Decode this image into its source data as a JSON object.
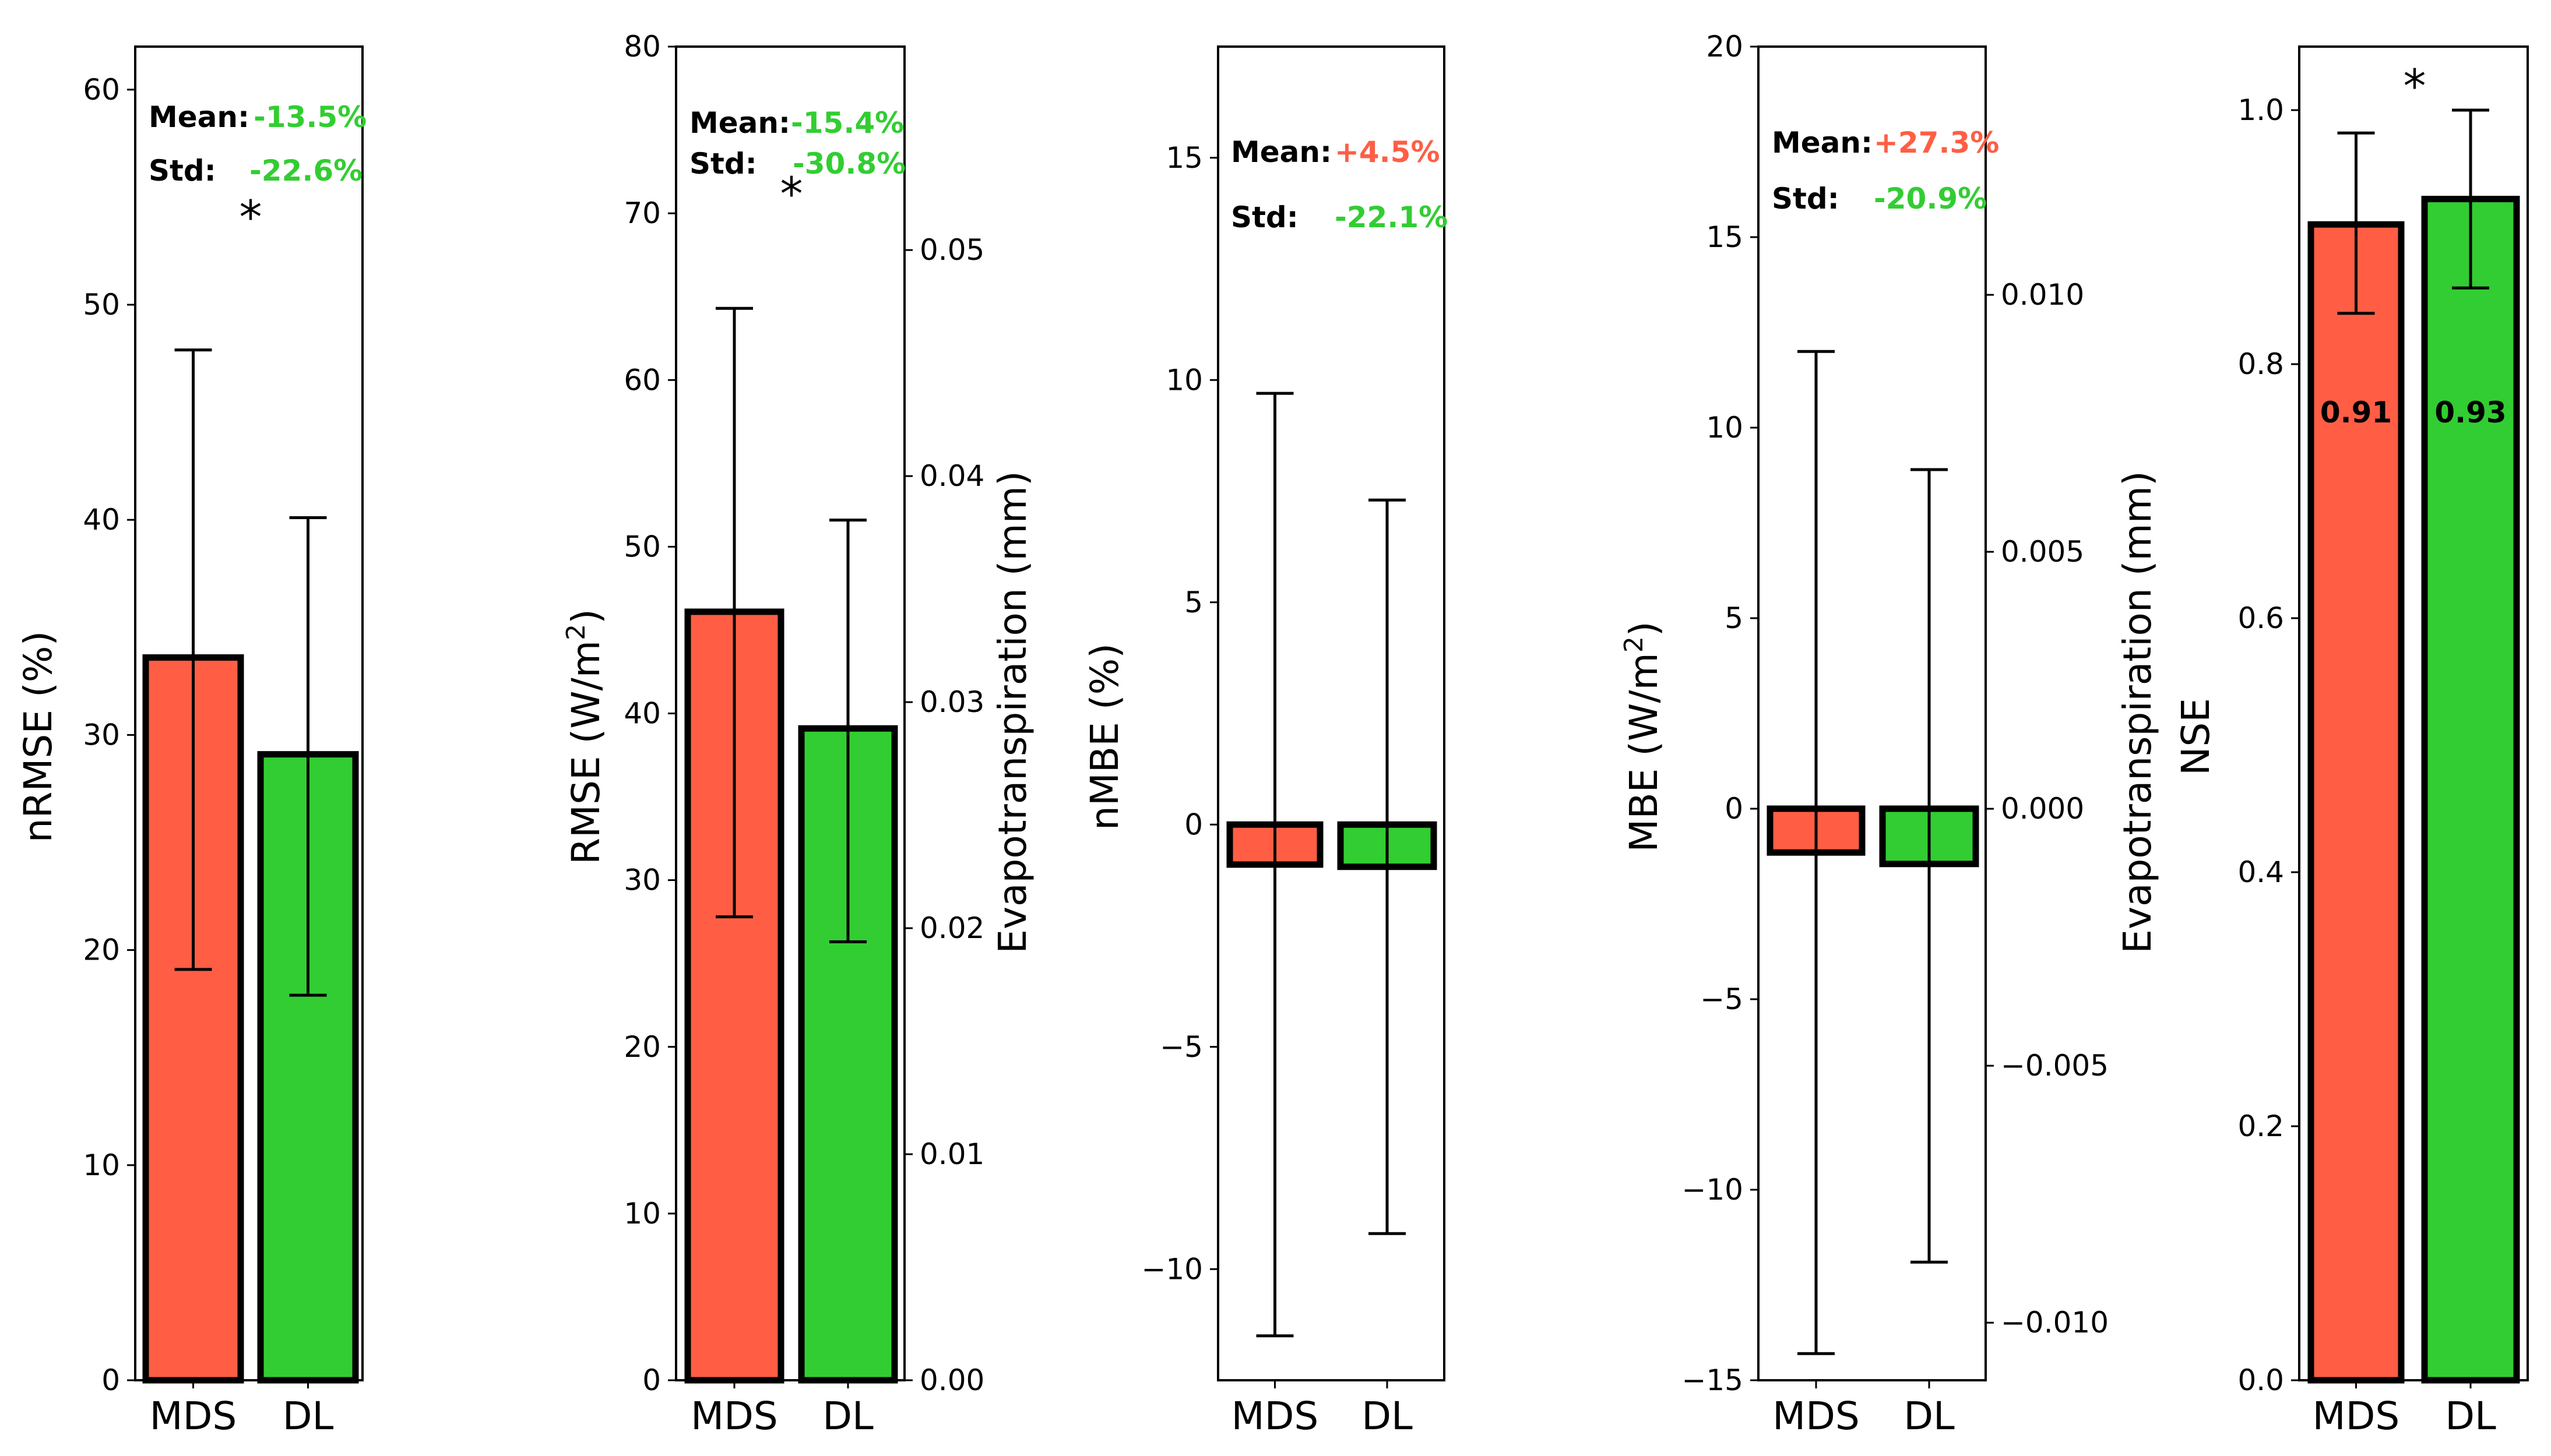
{
  "colors": {
    "mds": "#ff5e45",
    "dl": "#32cd32",
    "good": "#32cd32",
    "bad": "#ff5e45",
    "edge": "#000000"
  },
  "chart_data": [
    {
      "type": "bar",
      "categories": [
        "MDS",
        "DL"
      ],
      "values": [
        33.6,
        29.1
      ],
      "errors": [
        [
          19.1,
          47.9
        ],
        [
          17.9,
          40.1
        ]
      ],
      "ylabel": "nRMSE (%)",
      "ylim": [
        0,
        62
      ],
      "yticks": [
        0,
        10,
        20,
        30,
        40,
        50,
        60
      ],
      "stats": {
        "mean_label": "Mean:",
        "mean_value": "-13.5%",
        "mean_color": "good",
        "std_label": "Std:",
        "std_value": "-22.6%",
        "std_color": "good"
      },
      "significance": "*"
    },
    {
      "type": "bar",
      "categories": [
        "MDS",
        "DL"
      ],
      "values": [
        46.1,
        39.1
      ],
      "errors": [
        [
          27.8,
          64.3
        ],
        [
          26.3,
          51.6
        ]
      ],
      "ylabel": "RMSE (W/m",
      "ylabel_sup": "2",
      "ylabel_end": ")",
      "ylim": [
        0,
        80
      ],
      "yticks": [
        0,
        10,
        20,
        30,
        40,
        50,
        60,
        70,
        80
      ],
      "ylabel_right": "Evapotranspiration (mm)",
      "ylim_right": [
        0,
        0.059
      ],
      "yticks_right": [
        "0.00",
        "0.01",
        "0.02",
        "0.03",
        "0.04",
        "0.05"
      ],
      "stats": {
        "mean_label": "Mean:",
        "mean_value": "-15.4%",
        "mean_color": "good",
        "std_label": "Std:",
        "std_value": "-30.8%",
        "std_color": "good"
      },
      "significance": "*"
    },
    {
      "type": "bar",
      "categories": [
        "MDS",
        "DL"
      ],
      "values": [
        -0.9,
        -0.95
      ],
      "errors": [
        [
          -11.5,
          9.7
        ],
        [
          -9.2,
          7.3
        ]
      ],
      "ylabel": "nMBE (%)",
      "ylim": [
        -12.5,
        17.5
      ],
      "yticks": [
        -10,
        -5,
        0,
        5,
        10,
        15
      ],
      "ytick_labels": [
        "−10",
        "−5",
        "0",
        "5",
        "10",
        "15"
      ],
      "stats": {
        "mean_label": "Mean:",
        "mean_value": "+4.5%",
        "mean_color": "bad",
        "std_label": "Std:",
        "std_value": "-22.1%",
        "std_color": "good"
      }
    },
    {
      "type": "bar",
      "categories": [
        "MDS",
        "DL"
      ],
      "values": [
        -1.15,
        -1.45
      ],
      "errors": [
        [
          -14.3,
          12.0
        ],
        [
          -11.9,
          8.9
        ]
      ],
      "ylabel": "MBE (W/m",
      "ylabel_sup": "2",
      "ylabel_end": ")",
      "ylim": [
        -15,
        20
      ],
      "yticks": [
        -15,
        -10,
        -5,
        0,
        5,
        10,
        15,
        20
      ],
      "ytick_labels": [
        "−15",
        "−10",
        "−5",
        "0",
        "5",
        "10",
        "15",
        "20"
      ],
      "ylabel_right": "Evapotranspiration (mm)",
      "ylim_right": [
        -0.01112,
        0.01483
      ],
      "yticks_right": [
        -0.01,
        -0.005,
        0,
        0.005,
        0.01
      ],
      "yticks_right_labels": [
        "−0.010",
        "−0.005",
        "0.000",
        "0.005",
        "0.010"
      ],
      "stats": {
        "mean_label": "Mean:",
        "mean_value": "+27.3%",
        "mean_color": "bad",
        "std_label": "Std:",
        "std_value": "-20.9%",
        "std_color": "good"
      }
    },
    {
      "type": "bar",
      "categories": [
        "MDS",
        "DL"
      ],
      "values": [
        0.91,
        0.93
      ],
      "value_labels": [
        "0.91",
        "0.93"
      ],
      "errors": [
        [
          0.84,
          0.982
        ],
        [
          0.86,
          1.0
        ]
      ],
      "ylabel": "NSE",
      "ylim": [
        0,
        1.05
      ],
      "yticks": [
        0,
        0.2,
        0.4,
        0.6,
        0.8,
        1.0
      ],
      "ytick_labels": [
        "0.0",
        "0.2",
        "0.4",
        "0.6",
        "0.8",
        "1.0"
      ],
      "significance": "*"
    }
  ]
}
